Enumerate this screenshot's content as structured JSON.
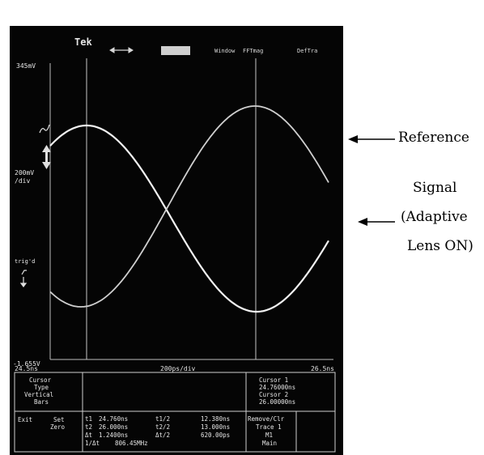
{
  "scope": {
    "brand": "Tek",
    "menu": {
      "arrows_icon": "left-right-arrows-icon",
      "window_label": "Window",
      "fft_label": "FFTmag",
      "deftra_label": "DefTra"
    },
    "y_top_label": "345mV",
    "scale_label_1": "200mV",
    "scale_label_2": "/div",
    "trig_label": "trig'd",
    "y_bottom_label": "-1.655V",
    "x_left_label": "24.5ns",
    "x_center_label": "200ps/div",
    "x_right_label": "26.5ns",
    "cursor_type": {
      "line1": "Cursor",
      "line2": "Type",
      "line3": "Vertical",
      "line4": "Bars"
    },
    "cursor_info": {
      "c1_label": "Cursor 1",
      "c1_value": "24.76000ns",
      "c2_label": "Cursor 2",
      "c2_value": "26.00000ns"
    },
    "exit_label": "Exit",
    "set_label": "Set",
    "zero_label": "Zero",
    "readouts": {
      "t1_label": "t1",
      "t1_value": "24.760ns",
      "t2_label": "t2",
      "t2_value": "26.000ns",
      "dt_label": "Δt",
      "dt_value": "1.2400ns",
      "inv_label": "1/Δt",
      "inv_value": "806.45MHz",
      "t1h_label": "t1/2",
      "t1h_value": "12.380ns",
      "t2h_label": "t2/2",
      "t2h_value": "13.000ns",
      "dth_label": "Δt/2",
      "dth_value": "620.00ps"
    },
    "remove": {
      "line1": "Remove/Clr",
      "line2": "Trace 1",
      "line3": "M1",
      "line4": "Main"
    }
  },
  "annotations": {
    "reference": "Reference",
    "signal_1": "Signal",
    "signal_2": "(Adaptive",
    "signal_3": "Lens ON)"
  }
}
